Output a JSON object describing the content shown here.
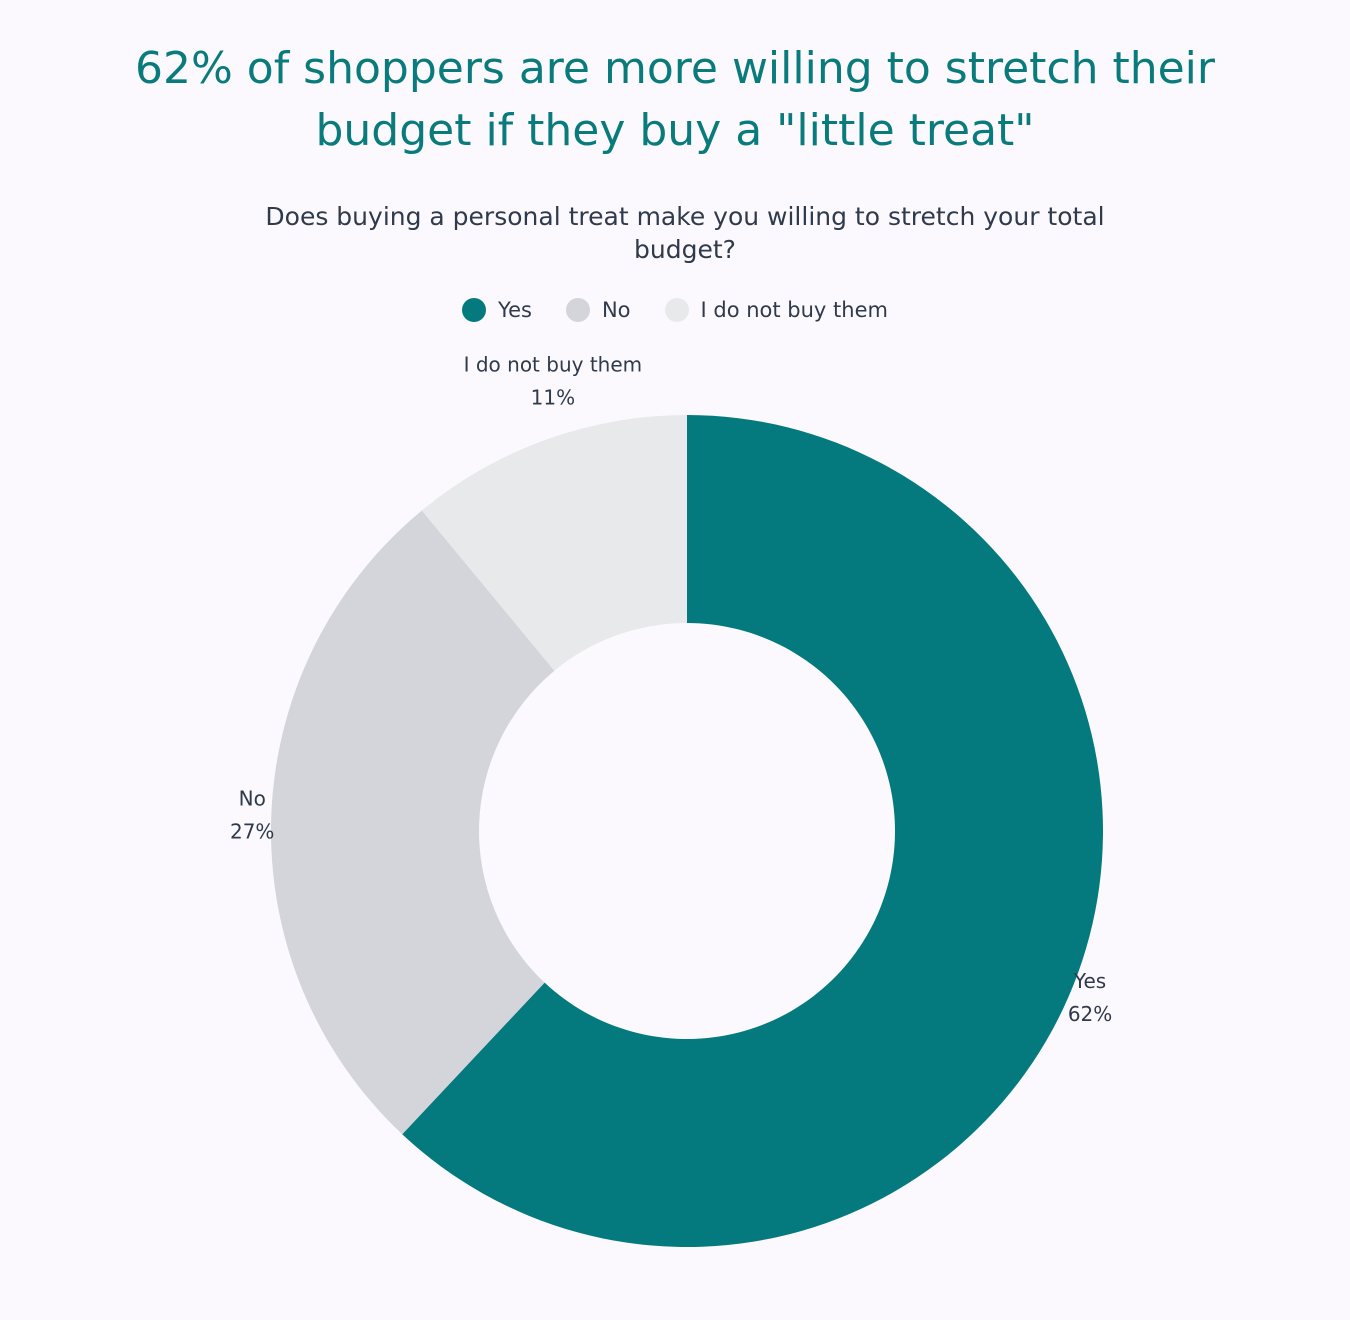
{
  "chart_data": {
    "type": "donut",
    "title": "62% of shoppers are more willing to stretch their budget if they buy a \"little treat\"",
    "subtitle": "Does buying a personal treat make you willing to stretch your total budget?",
    "categories": [
      "Yes",
      "No",
      "I do not buy them"
    ],
    "values": [
      62,
      27,
      11
    ],
    "value_labels": [
      "62%",
      "27%",
      "11%"
    ],
    "colors": [
      "#047a7e",
      "#d3d5db",
      "#e8e9eb"
    ]
  }
}
